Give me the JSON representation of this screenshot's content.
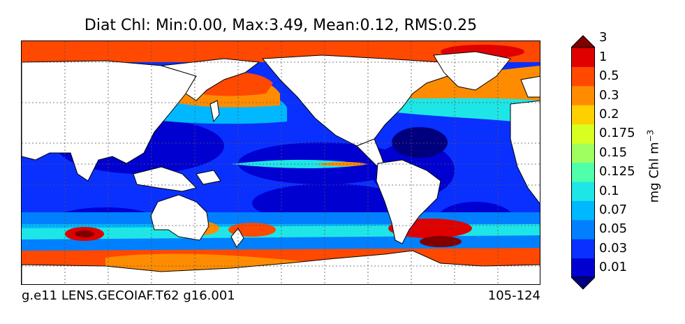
{
  "title": "Diat Chl: Min:0.00, Max:3.49, Mean:0.12, RMS:0.25",
  "footer": {
    "left": "g.e11 LENS.GECOIAF.T62 g16.001",
    "right": "105-124"
  },
  "colorbar": {
    "label": "mg Chl m",
    "label_exponent": "−3",
    "ticks": [
      "0.01",
      "0.03",
      "0.05",
      "0.07",
      "0.1",
      "0.125",
      "0.15",
      "0.175",
      "0.2",
      "0.3",
      "0.5",
      "1",
      "3"
    ],
    "colors": [
      "#00007f",
      "#0000d0",
      "#0a30ff",
      "#0080ff",
      "#00b8ff",
      "#1ee6e6",
      "#50ffaa",
      "#a0ff60",
      "#d8ff20",
      "#ffd000",
      "#ff8c00",
      "#ff4800",
      "#e00000",
      "#800000"
    ]
  },
  "colors": {
    "land": "#ffffff",
    "grid": "#555555"
  }
}
